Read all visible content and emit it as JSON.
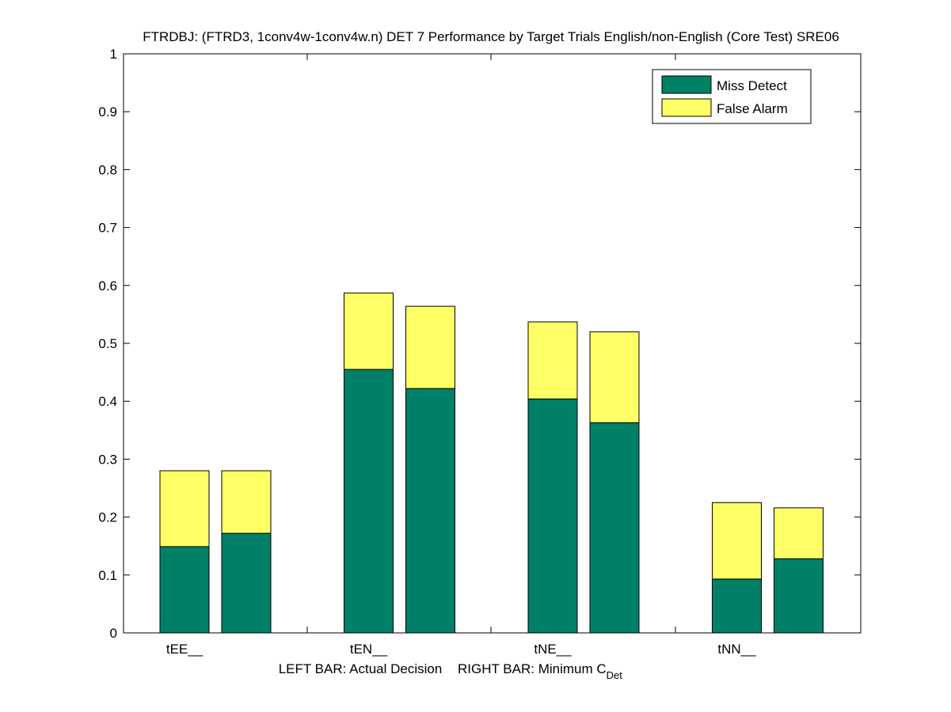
{
  "chart_data": {
    "type": "bar",
    "stacked": true,
    "title": "FTRDBJ: (FTRD3, 1conv4w-1conv4w.n) DET 7 Performance by Target Trials English/non-English (Core Test) SRE06",
    "xlabel_left": "LEFT BAR: Actual Decision",
    "xlabel_right": "RIGHT BAR: Minimum C",
    "xlabel_subscript": "Det",
    "ylabel": "",
    "ylim": [
      0,
      1
    ],
    "yticks": [
      "0",
      "0.1",
      "0.2",
      "0.3",
      "0.4",
      "0.5",
      "0.6",
      "0.7",
      "0.8",
      "0.9",
      "1"
    ],
    "categories": [
      "tEE__",
      "tEN__",
      "tNE__",
      "tNN__"
    ],
    "legend_position": "top-right",
    "series": [
      {
        "name": "Miss Detect",
        "color": "#008066",
        "actual": [
          0.149,
          0.455,
          0.404,
          0.093
        ],
        "minimum": [
          0.172,
          0.422,
          0.363,
          0.128
        ]
      },
      {
        "name": "False Alarm",
        "color": "#ffff66",
        "actual": [
          0.131,
          0.132,
          0.133,
          0.132
        ],
        "minimum": [
          0.108,
          0.142,
          0.157,
          0.088
        ]
      }
    ]
  }
}
